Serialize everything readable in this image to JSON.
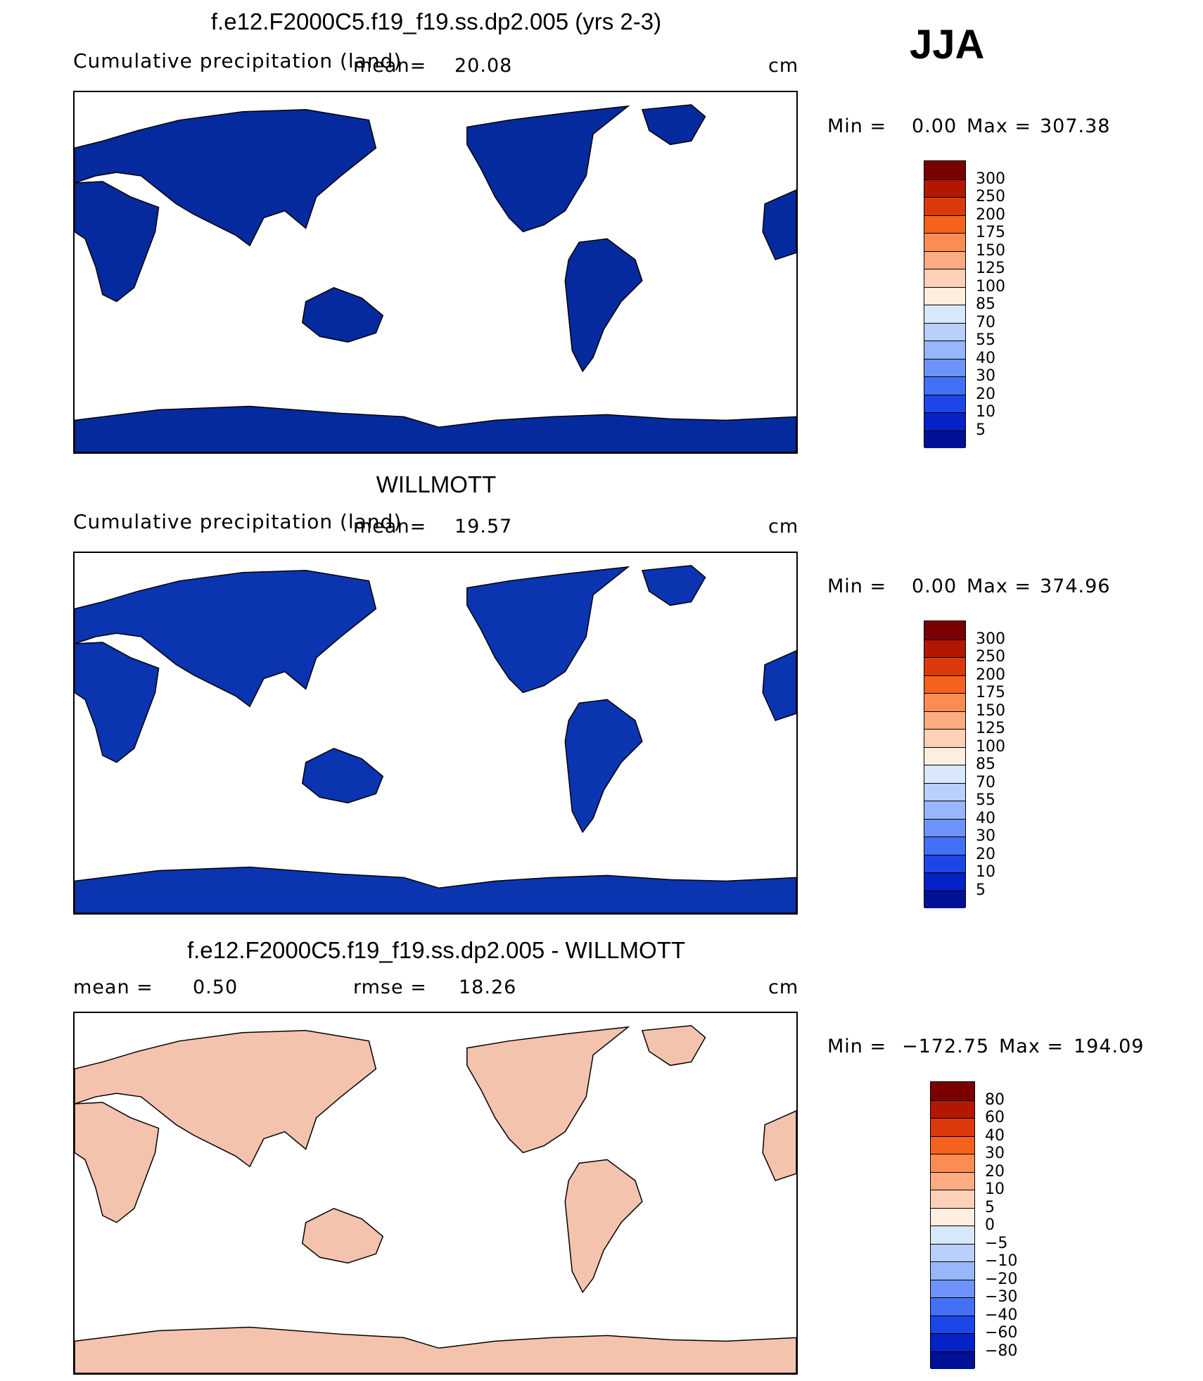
{
  "season": "JJA",
  "panels": [
    {
      "title": "f.e12.F2000C5.f19_f19.ss.dp2.005 (yrs 2-3)",
      "left_label": "Cumulative precipitation (land)",
      "mean_label": "mean=",
      "mean_value": "20.08",
      "units": "cm",
      "min_label": "Min =",
      "min_value": "0.00",
      "max_label": "Max =",
      "max_value": "307.38",
      "colorbar": {
        "labels": [
          "300",
          "250",
          "200",
          "175",
          "150",
          "125",
          "100",
          "85",
          "70",
          "55",
          "40",
          "30",
          "20",
          "10",
          "5"
        ],
        "colors": [
          "#7a0000",
          "#b21800",
          "#dc3a0c",
          "#f5621e",
          "#fd8c54",
          "#fdab80",
          "#fdd1b8",
          "#fdeee0",
          "#d8e8fb",
          "#b8d0fa",
          "#98b6fb",
          "#6e94fb",
          "#4270f7",
          "#1c46e8",
          "#0522c6",
          "#001196"
        ]
      },
      "map_fill": "#052a9e"
    },
    {
      "title": "WILLMOTT",
      "left_label": "Cumulative precipitation (land)",
      "mean_label": "mean=",
      "mean_value": "19.57",
      "units": "cm",
      "min_label": "Min =",
      "min_value": "0.00",
      "max_label": "Max =",
      "max_value": "374.96",
      "colorbar": {
        "labels": [
          "300",
          "250",
          "200",
          "175",
          "150",
          "125",
          "100",
          "85",
          "70",
          "55",
          "40",
          "30",
          "20",
          "10",
          "5"
        ],
        "colors": [
          "#7a0000",
          "#b21800",
          "#dc3a0c",
          "#f5621e",
          "#fd8c54",
          "#fdab80",
          "#fdd1b8",
          "#fdeee0",
          "#d8e8fb",
          "#b8d0fa",
          "#98b6fb",
          "#6e94fb",
          "#4270f7",
          "#1c46e8",
          "#0522c6",
          "#001196"
        ]
      },
      "map_fill": "#0a34b0"
    },
    {
      "title": "f.e12.F2000C5.f19_f19.ss.dp2.005 - WILLMOTT",
      "mean_label": "mean =",
      "mean_value": "0.50",
      "rmse_label": "rmse =",
      "rmse_value": "18.26",
      "units": "cm",
      "min_label": "Min =",
      "min_value": "−172.75",
      "max_label": "Max =",
      "max_value": "194.09",
      "colorbar": {
        "labels": [
          "80",
          "60",
          "40",
          "30",
          "20",
          "10",
          "5",
          "0",
          "−5",
          "−10",
          "−20",
          "−30",
          "−40",
          "−60",
          "−80"
        ],
        "colors": [
          "#7a0000",
          "#b21800",
          "#dc3a0c",
          "#f5621e",
          "#fd8c54",
          "#fdab80",
          "#fdd1b8",
          "#fdeee0",
          "#d8e8fb",
          "#b8d0fa",
          "#98b6fb",
          "#6e94fb",
          "#4270f7",
          "#1c46e8",
          "#0522c6",
          "#001196"
        ]
      },
      "map_fill": "#f4c3ad"
    }
  ]
}
